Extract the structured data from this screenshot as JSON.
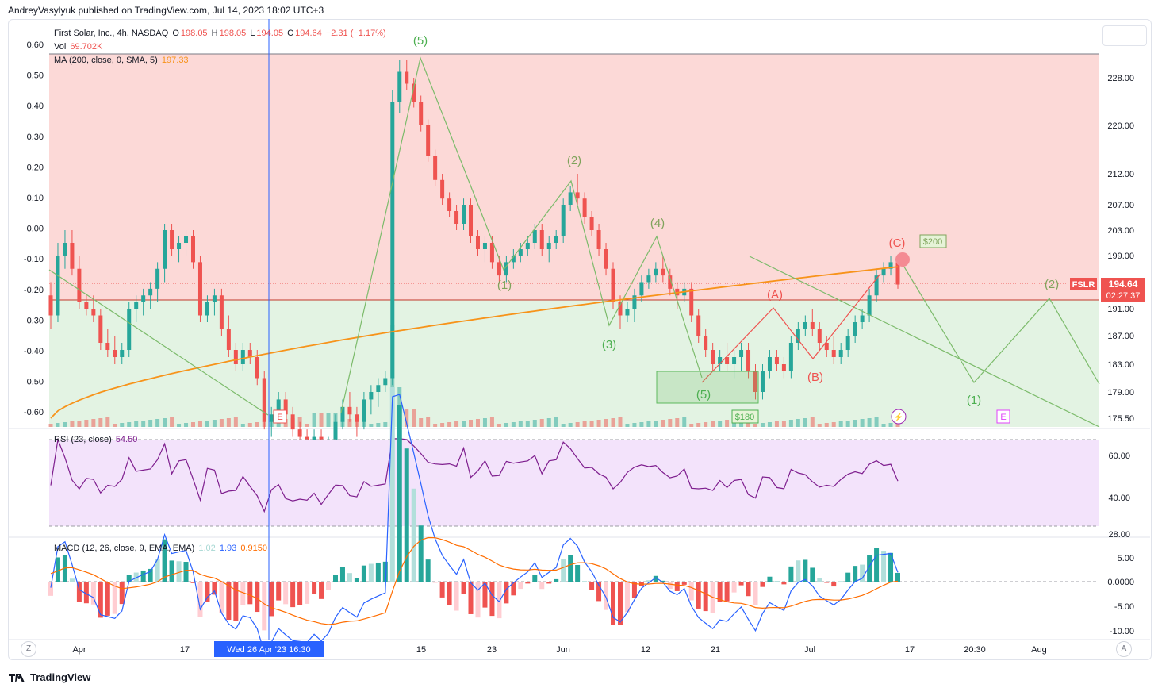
{
  "header": {
    "publisher": "AndreyVasylyuk published on TradingView.com, Jul 14, 2023 18:02 UTC+3"
  },
  "legend": {
    "symbol": "First Solar, Inc., 4h, NASDAQ",
    "o_label": "O",
    "o": "198.05",
    "h_label": "H",
    "h": "198.05",
    "l_label": "L",
    "l": "194.05",
    "c_label": "C",
    "c": "194.64",
    "change": "−2.31 (−1.17%)",
    "vol_label": "Vol",
    "vol": "69.702K",
    "ma_label": "MA (200, close, 0, SMA, 5)",
    "ma": "197.33",
    "rsi_label": "RSI (23, close)",
    "rsi": "54.50",
    "macd_label": "MACD (12, 26, close, 9, EMA, EMA)",
    "macd_hist": "1.02",
    "macd_line": "1.93",
    "macd_signal": "0.9150"
  },
  "colors": {
    "up": "#26a69a",
    "down": "#ef5350",
    "ma": "#f7931a",
    "rsi": "#7e1e8e",
    "macd": "#2962ff",
    "signal": "#ff6d00",
    "wave": "#7cbb6b",
    "zone_red": "#fcd9d7",
    "zone_green": "#e3f3e3",
    "crosshair": "#2962ff"
  },
  "price_tag": {
    "symbol": "FSLR",
    "price": "194.64",
    "time": "02:27:37"
  },
  "crosshair_label": "Wed 26 Apr '23   16:30",
  "footer": {
    "brand": "TradingView"
  },
  "annotations": {
    "w5top": "(5)",
    "w1": "(1)",
    "w2": "(2)",
    "w3": "(3)",
    "w4": "(4)",
    "w5low": "(5)",
    "a": "(A)",
    "b": "(B)",
    "c": "(C)",
    "f1": "(1)",
    "f2": "(2)",
    "p200": "$200",
    "p180": "$180",
    "e": "E"
  },
  "chart_data": {
    "type": "candlestick",
    "symbol": "FSLR",
    "x_ticks": [
      "Apr",
      "17",
      "15",
      "23",
      "Jun",
      "12",
      "21",
      "Jul",
      "17",
      "20:30",
      "Aug"
    ],
    "left_axis": {
      "ticks": [
        "0.60",
        "0.50",
        "0.40",
        "0.30",
        "0.20",
        "0.10",
        "0.00",
        "-0.10",
        "-0.20",
        "-0.30",
        "-0.40",
        "-0.50",
        "-0.60"
      ]
    },
    "price_axis": {
      "ticks": [
        "228.00",
        "220.00",
        "212.00",
        "207.00",
        "203.00",
        "199.00",
        "191.00",
        "187.00",
        "183.00",
        "179.00",
        "175.50"
      ]
    },
    "rsi_axis": {
      "ticks": [
        "60.00",
        "40.00",
        "28.00"
      ]
    },
    "macd_axis": {
      "ticks": [
        "5.00",
        "0.0000",
        "-5.00",
        "-10.00"
      ]
    },
    "last_price": 194.64,
    "ma200_last": 197.33,
    "rsi_last": 54.5,
    "macd_last": {
      "hist": 1.02,
      "macd": 1.93,
      "signal": 0.915
    },
    "candles_ohlc": [
      [
        193,
        195,
        188,
        190
      ],
      [
        190,
        201,
        189,
        199
      ],
      [
        199,
        203,
        197,
        201
      ],
      [
        201,
        203,
        196,
        197
      ],
      [
        197,
        199,
        191,
        192
      ],
      [
        192,
        193,
        190,
        191
      ],
      [
        191,
        193,
        189,
        190
      ],
      [
        190,
        191,
        185,
        186
      ],
      [
        186,
        188,
        184,
        185
      ],
      [
        185,
        187,
        183,
        184
      ],
      [
        184,
        186,
        183,
        185
      ],
      [
        185,
        192,
        184,
        191
      ],
      [
        191,
        193,
        189,
        192
      ],
      [
        192,
        194,
        190,
        193
      ],
      [
        193,
        195,
        191,
        194
      ],
      [
        194,
        198,
        192,
        197
      ],
      [
        197,
        204,
        195,
        203
      ],
      [
        203,
        204,
        199,
        200
      ],
      [
        200,
        202,
        198,
        201
      ],
      [
        201,
        203,
        199,
        202
      ],
      [
        202,
        203,
        197,
        198
      ],
      [
        198,
        199,
        189,
        190
      ],
      [
        190,
        193,
        189,
        192
      ],
      [
        192,
        194,
        190,
        193
      ],
      [
        193,
        194,
        187,
        188
      ],
      [
        188,
        190,
        184,
        185
      ],
      [
        185,
        186,
        182,
        183
      ],
      [
        183,
        186,
        182,
        185
      ],
      [
        185,
        186,
        183,
        184
      ],
      [
        184,
        185,
        180,
        181
      ],
      [
        181,
        182,
        174,
        175
      ],
      [
        175,
        177,
        173,
        176
      ],
      [
        176,
        179,
        175,
        178
      ],
      [
        178,
        179,
        175,
        176
      ],
      [
        176,
        177,
        173,
        174
      ],
      [
        174,
        175,
        172,
        173
      ],
      [
        173,
        174,
        171,
        172
      ],
      [
        172,
        174,
        171,
        173
      ],
      [
        173,
        174,
        170,
        171
      ],
      [
        171,
        173,
        170,
        172
      ],
      [
        172,
        176,
        171,
        175
      ],
      [
        175,
        178,
        174,
        177
      ],
      [
        177,
        179,
        175,
        176
      ],
      [
        176,
        177,
        173,
        175
      ],
      [
        175,
        179,
        174,
        178
      ],
      [
        178,
        180,
        176,
        179
      ],
      [
        179,
        181,
        177,
        180
      ],
      [
        180,
        182,
        179,
        181
      ],
      [
        181,
        226,
        180,
        224
      ],
      [
        224,
        231,
        222,
        229
      ],
      [
        229,
        231,
        226,
        227
      ],
      [
        227,
        228,
        223,
        224
      ],
      [
        224,
        225,
        219,
        220
      ],
      [
        220,
        221,
        214,
        215
      ],
      [
        215,
        216,
        210,
        211
      ],
      [
        211,
        212,
        207,
        208
      ],
      [
        208,
        209,
        205,
        206
      ],
      [
        206,
        207,
        203,
        204
      ],
      [
        204,
        208,
        203,
        207
      ],
      [
        207,
        208,
        201,
        202
      ],
      [
        202,
        203,
        199,
        200
      ],
      [
        200,
        202,
        198,
        201
      ],
      [
        201,
        202,
        197,
        198
      ],
      [
        198,
        199,
        195,
        196
      ],
      [
        196,
        199,
        195,
        198
      ],
      [
        198,
        200,
        197,
        199
      ],
      [
        199,
        201,
        198,
        200
      ],
      [
        200,
        202,
        199,
        201
      ],
      [
        201,
        204,
        200,
        203
      ],
      [
        203,
        204,
        199,
        200
      ],
      [
        200,
        202,
        198,
        201
      ],
      [
        201,
        203,
        200,
        202
      ],
      [
        202,
        208,
        201,
        207
      ],
      [
        207,
        210,
        206,
        209
      ],
      [
        209,
        212,
        207,
        208
      ],
      [
        208,
        209,
        204,
        205
      ],
      [
        205,
        206,
        202,
        203
      ],
      [
        203,
        204,
        199,
        200
      ],
      [
        200,
        201,
        196,
        197
      ],
      [
        197,
        198,
        191,
        192
      ],
      [
        192,
        193,
        188,
        190
      ],
      [
        190,
        192,
        189,
        191
      ],
      [
        191,
        194,
        189,
        193
      ],
      [
        193,
        196,
        192,
        195
      ],
      [
        195,
        197,
        194,
        196
      ],
      [
        196,
        198,
        195,
        197
      ],
      [
        197,
        199,
        195,
        196
      ],
      [
        196,
        197,
        193,
        194
      ],
      [
        194,
        195,
        191,
        193
      ],
      [
        193,
        195,
        192,
        194
      ],
      [
        194,
        195,
        189,
        190
      ],
      [
        190,
        191,
        186,
        187
      ],
      [
        187,
        188,
        184,
        185
      ],
      [
        185,
        186,
        182,
        183
      ],
      [
        183,
        185,
        182,
        184
      ],
      [
        184,
        186,
        182,
        183
      ],
      [
        183,
        185,
        181,
        184
      ],
      [
        184,
        186,
        182,
        185
      ],
      [
        185,
        186,
        181,
        182
      ],
      [
        182,
        183,
        178,
        179
      ],
      [
        179,
        183,
        178,
        182
      ],
      [
        182,
        185,
        181,
        184
      ],
      [
        184,
        185,
        182,
        183
      ],
      [
        183,
        184,
        181,
        182
      ],
      [
        182,
        187,
        181,
        186
      ],
      [
        186,
        189,
        185,
        188
      ],
      [
        188,
        190,
        187,
        189
      ],
      [
        189,
        191,
        187,
        188
      ],
      [
        188,
        189,
        185,
        186
      ],
      [
        186,
        187,
        184,
        185
      ],
      [
        185,
        187,
        183,
        184
      ],
      [
        184,
        186,
        183,
        185
      ],
      [
        185,
        188,
        184,
        187
      ],
      [
        187,
        190,
        186,
        189
      ],
      [
        189,
        191,
        188,
        190
      ],
      [
        190,
        194,
        189,
        193
      ],
      [
        193,
        197,
        192,
        196
      ],
      [
        196,
        198,
        195,
        197
      ],
      [
        197,
        199,
        196,
        198
      ],
      [
        198,
        198,
        194,
        194.64
      ]
    ]
  }
}
